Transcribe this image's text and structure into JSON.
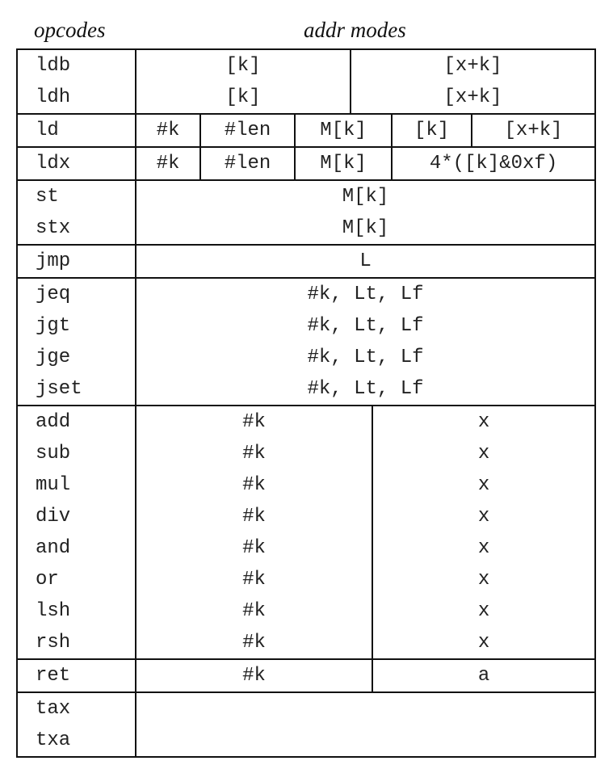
{
  "header": {
    "opcodes": "opcodes",
    "addr_modes": "addr modes"
  },
  "groups": {
    "load_byte": {
      "ops": [
        "ldb",
        "ldh"
      ],
      "a": [
        "[k]",
        "[k]"
      ],
      "b": [
        "[x+k]",
        "[x+k]"
      ]
    },
    "ld": {
      "op": "ld",
      "modes": [
        "#k",
        "#len",
        "M[k]",
        "[k]",
        "[x+k]"
      ]
    },
    "ldx": {
      "op": "ldx",
      "modes": [
        "#k",
        "#len",
        "M[k]",
        "4*([k]&0xf)"
      ]
    },
    "store": {
      "ops": [
        "st",
        "stx"
      ],
      "a": [
        "M[k]",
        "M[k]"
      ]
    },
    "jmp": {
      "op": "jmp",
      "a": "L"
    },
    "jcond": {
      "ops": [
        "jeq",
        "jgt",
        "jge",
        "jset"
      ],
      "a": [
        "#k, Lt, Lf",
        "#k, Lt, Lf",
        "#k, Lt, Lf",
        "#k, Lt, Lf"
      ]
    },
    "alu": {
      "ops": [
        "add",
        "sub",
        "mul",
        "div",
        "and",
        "or",
        "lsh",
        "rsh"
      ],
      "a": [
        "#k",
        "#k",
        "#k",
        "#k",
        "#k",
        "#k",
        "#k",
        "#k"
      ],
      "b": [
        "x",
        "x",
        "x",
        "x",
        "x",
        "x",
        "x",
        "x"
      ]
    },
    "ret": {
      "op": "ret",
      "a": "#k",
      "b": "a"
    },
    "misc": {
      "ops": [
        "tax",
        "txa"
      ]
    }
  }
}
